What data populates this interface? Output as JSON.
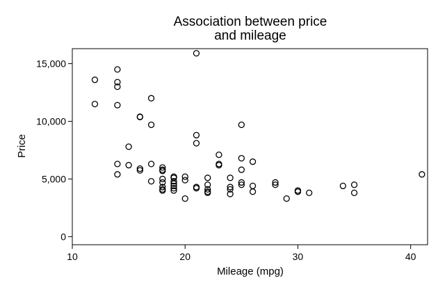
{
  "chart_data": {
    "type": "scatter",
    "title": [
      "Association between price",
      "and mileage"
    ],
    "xlabel": "Mileage (mpg)",
    "ylabel": "Price",
    "xlim": [
      10,
      41.5
    ],
    "ylim": [
      -700,
      16300
    ],
    "xticks": [
      10,
      20,
      30,
      40
    ],
    "xtick_labels": [
      "10",
      "20",
      "30",
      "40"
    ],
    "yticks": [
      0,
      5000,
      10000,
      15000
    ],
    "ytick_labels": [
      "0",
      "5,000",
      "10,000",
      "15,000"
    ],
    "grid": false,
    "legend": false,
    "marker": "hollow-circle",
    "colors": {
      "marker": "#000000",
      "background": "#ffffff"
    },
    "points": [
      {
        "x": 12,
        "y": 13600
      },
      {
        "x": 12,
        "y": 11500
      },
      {
        "x": 14,
        "y": 14500
      },
      {
        "x": 14,
        "y": 13400
      },
      {
        "x": 14,
        "y": 13000
      },
      {
        "x": 14,
        "y": 11400
      },
      {
        "x": 14,
        "y": 6300
      },
      {
        "x": 14,
        "y": 5400
      },
      {
        "x": 15,
        "y": 7800
      },
      {
        "x": 15,
        "y": 6200
      },
      {
        "x": 16,
        "y": 10400
      },
      {
        "x": 16,
        "y": 10370
      },
      {
        "x": 16,
        "y": 5900
      },
      {
        "x": 16,
        "y": 5750
      },
      {
        "x": 17,
        "y": 12000
      },
      {
        "x": 17,
        "y": 9700
      },
      {
        "x": 17,
        "y": 6300
      },
      {
        "x": 17,
        "y": 4800
      },
      {
        "x": 18,
        "y": 6000
      },
      {
        "x": 18,
        "y": 5800
      },
      {
        "x": 18,
        "y": 5700
      },
      {
        "x": 18,
        "y": 5000
      },
      {
        "x": 18,
        "y": 4700
      },
      {
        "x": 18,
        "y": 4300
      },
      {
        "x": 18,
        "y": 4100
      },
      {
        "x": 18,
        "y": 4000
      },
      {
        "x": 19,
        "y": 5200
      },
      {
        "x": 19,
        "y": 5100
      },
      {
        "x": 19,
        "y": 4800
      },
      {
        "x": 19,
        "y": 4600
      },
      {
        "x": 19,
        "y": 4400
      },
      {
        "x": 19,
        "y": 4200
      },
      {
        "x": 19,
        "y": 4000
      },
      {
        "x": 20,
        "y": 5200
      },
      {
        "x": 20,
        "y": 4900
      },
      {
        "x": 20,
        "y": 3300
      },
      {
        "x": 21,
        "y": 15900
      },
      {
        "x": 21,
        "y": 8800
      },
      {
        "x": 21,
        "y": 8100
      },
      {
        "x": 21,
        "y": 4300
      },
      {
        "x": 21,
        "y": 4200
      },
      {
        "x": 22,
        "y": 5100
      },
      {
        "x": 22,
        "y": 4500
      },
      {
        "x": 22,
        "y": 4100
      },
      {
        "x": 22,
        "y": 3900
      },
      {
        "x": 22,
        "y": 3800
      },
      {
        "x": 23,
        "y": 7100
      },
      {
        "x": 23,
        "y": 6300
      },
      {
        "x": 23,
        "y": 6200
      },
      {
        "x": 24,
        "y": 5100
      },
      {
        "x": 24,
        "y": 4300
      },
      {
        "x": 24,
        "y": 4100
      },
      {
        "x": 24,
        "y": 3700
      },
      {
        "x": 25,
        "y": 9700
      },
      {
        "x": 25,
        "y": 6800
      },
      {
        "x": 25,
        "y": 5800
      },
      {
        "x": 25,
        "y": 4700
      },
      {
        "x": 25,
        "y": 4500
      },
      {
        "x": 26,
        "y": 6500
      },
      {
        "x": 26,
        "y": 4400
      },
      {
        "x": 26,
        "y": 3900
      },
      {
        "x": 28,
        "y": 4700
      },
      {
        "x": 28,
        "y": 4500
      },
      {
        "x": 29,
        "y": 3300
      },
      {
        "x": 30,
        "y": 4000
      },
      {
        "x": 30,
        "y": 3900
      },
      {
        "x": 31,
        "y": 3800
      },
      {
        "x": 34,
        "y": 4400
      },
      {
        "x": 35,
        "y": 4500
      },
      {
        "x": 35,
        "y": 3800
      },
      {
        "x": 41,
        "y": 5400
      }
    ]
  }
}
